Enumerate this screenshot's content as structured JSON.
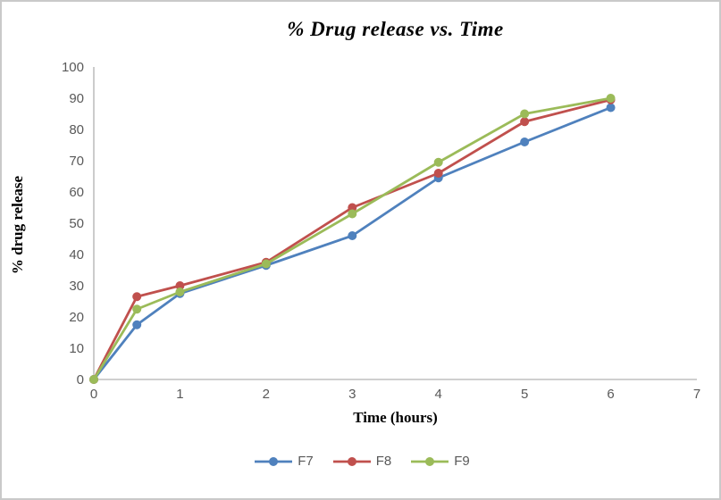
{
  "chart_data": {
    "type": "line",
    "title": "% Drug release vs. Time",
    "xlabel": "Time (hours)",
    "ylabel": "% drug release",
    "x": [
      0,
      0.5,
      1,
      2,
      3,
      4,
      5,
      6
    ],
    "series": [
      {
        "name": "F7",
        "color": "#4F81BD",
        "values": [
          0,
          17.5,
          27.5,
          36.5,
          46,
          64.5,
          76,
          87
        ]
      },
      {
        "name": "F8",
        "color": "#C0504D",
        "values": [
          0,
          26.5,
          30,
          37.5,
          55,
          66,
          82.5,
          89.5
        ]
      },
      {
        "name": "F9",
        "color": "#9BBB59",
        "values": [
          0,
          22.5,
          28,
          37,
          53,
          69.5,
          85,
          90
        ]
      }
    ],
    "xlim": [
      0,
      7
    ],
    "ylim": [
      0,
      100
    ],
    "x_ticks": [
      0,
      1,
      2,
      3,
      4,
      5,
      6,
      7
    ],
    "y_ticks": [
      0,
      10,
      20,
      30,
      40,
      50,
      60,
      70,
      80,
      90,
      100
    ],
    "grid": false,
    "legend_position": "bottom",
    "marker": "circle",
    "axis_color": "#BFBFBF",
    "tick_label_color": "#595959"
  }
}
